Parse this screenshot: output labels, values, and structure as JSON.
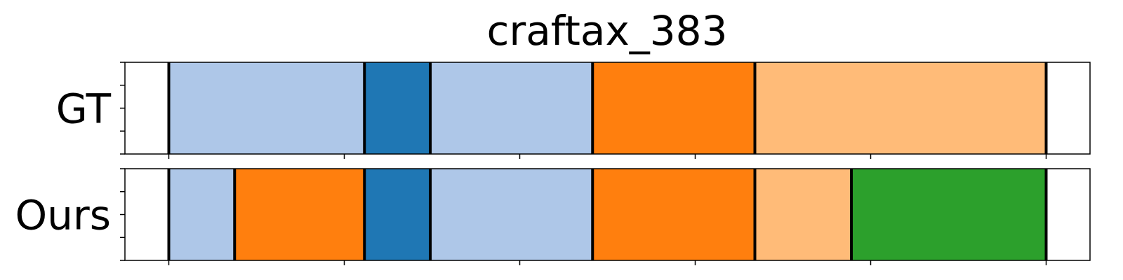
{
  "chart_data": {
    "type": "bar",
    "title": "craftax_383",
    "xlim": [
      0,
      110
    ],
    "xlabel": "",
    "ylabel": "",
    "grid": false,
    "x_ticks": [
      5,
      25,
      45,
      65,
      85,
      105
    ],
    "y_ticks_per_row": 5,
    "rows": [
      {
        "label": "GT",
        "segments": [
          {
            "start": 5,
            "end": 27.3,
            "color": "#aec7e8"
          },
          {
            "start": 27.3,
            "end": 34.8,
            "color": "#1f77b4"
          },
          {
            "start": 34.8,
            "end": 53.3,
            "color": "#aec7e8"
          },
          {
            "start": 53.3,
            "end": 71.8,
            "color": "#ff7f0e"
          },
          {
            "start": 71.8,
            "end": 105,
            "color": "#ffbb78"
          }
        ]
      },
      {
        "label": "Ours",
        "segments": [
          {
            "start": 5,
            "end": 12.5,
            "color": "#aec7e8"
          },
          {
            "start": 12.5,
            "end": 27.3,
            "color": "#ff7f0e"
          },
          {
            "start": 27.3,
            "end": 34.8,
            "color": "#1f77b4"
          },
          {
            "start": 34.8,
            "end": 53.3,
            "color": "#aec7e8"
          },
          {
            "start": 53.3,
            "end": 71.8,
            "color": "#ff7f0e"
          },
          {
            "start": 71.8,
            "end": 82.8,
            "color": "#ffbb78"
          },
          {
            "start": 82.8,
            "end": 105,
            "color": "#2ca02c"
          }
        ]
      }
    ]
  }
}
